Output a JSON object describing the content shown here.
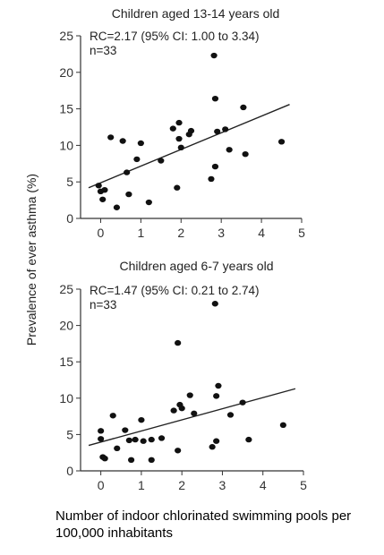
{
  "shared": {
    "ylabel": "Prevalence of ever asthma (%)",
    "xlabel": "Number of indoor chlorinated swimming pools per 100,000 inhabitants"
  },
  "chart_data": [
    {
      "type": "scatter",
      "title": "Children aged 13-14 years old",
      "annotation_lines": [
        "RC=2.17 (95% CI: 1.00 to 3.34)",
        "n=33"
      ],
      "xlabel": "Number of indoor chlorinated swimming pools per 100,000 inhabitants",
      "ylabel": "Prevalence of ever asthma (%)",
      "xlim": [
        -0.5,
        5
      ],
      "ylim": [
        0,
        25
      ],
      "xticks": [
        0,
        1,
        2,
        3,
        4,
        5
      ],
      "yticks": [
        0,
        5,
        10,
        15,
        20,
        25
      ],
      "grid": false,
      "points": [
        {
          "x": -0.05,
          "y": 4.5
        },
        {
          "x": 0.0,
          "y": 3.7
        },
        {
          "x": 0.05,
          "y": 2.6
        },
        {
          "x": 0.1,
          "y": 3.9
        },
        {
          "x": 0.25,
          "y": 11.1
        },
        {
          "x": 0.4,
          "y": 1.5
        },
        {
          "x": 0.55,
          "y": 10.6
        },
        {
          "x": 0.65,
          "y": 6.3
        },
        {
          "x": 0.7,
          "y": 3.3
        },
        {
          "x": 0.9,
          "y": 8.1
        },
        {
          "x": 1.0,
          "y": 10.3
        },
        {
          "x": 1.2,
          "y": 2.2
        },
        {
          "x": 1.5,
          "y": 7.9
        },
        {
          "x": 1.8,
          "y": 12.3
        },
        {
          "x": 1.9,
          "y": 4.2
        },
        {
          "x": 1.95,
          "y": 10.9
        },
        {
          "x": 1.95,
          "y": 13.1
        },
        {
          "x": 2.0,
          "y": 9.7
        },
        {
          "x": 2.25,
          "y": 12.0
        },
        {
          "x": 2.2,
          "y": 11.5
        },
        {
          "x": 2.75,
          "y": 5.4
        },
        {
          "x": 2.82,
          "y": 22.3
        },
        {
          "x": 2.85,
          "y": 7.1
        },
        {
          "x": 2.85,
          "y": 16.4
        },
        {
          "x": 2.9,
          "y": 11.9
        },
        {
          "x": 3.1,
          "y": 12.2
        },
        {
          "x": 3.2,
          "y": 9.4
        },
        {
          "x": 3.55,
          "y": 15.2
        },
        {
          "x": 3.6,
          "y": 8.8
        },
        {
          "x": 4.5,
          "y": 10.5
        }
      ],
      "fit_line": {
        "x": [
          -0.3,
          4.7
        ],
        "y": [
          4.2,
          15.6
        ]
      }
    },
    {
      "type": "scatter",
      "title": "Children aged 6-7 years old",
      "annotation_lines": [
        "RC=1.47 (95% CI: 0.21 to 2.74)",
        "n=33"
      ],
      "xlabel": "Number of indoor chlorinated swimming pools per 100,000 inhabitants",
      "ylabel": "Prevalence of ever asthma (%)",
      "xlim": [
        -0.5,
        5
      ],
      "ylim": [
        0,
        25
      ],
      "xticks": [
        0,
        1,
        2,
        3,
        4,
        5
      ],
      "yticks": [
        0,
        5,
        10,
        15,
        20,
        25
      ],
      "grid": false,
      "points": [
        {
          "x": 0.0,
          "y": 5.5
        },
        {
          "x": 0.0,
          "y": 4.4
        },
        {
          "x": 0.05,
          "y": 1.9
        },
        {
          "x": 0.1,
          "y": 1.7
        },
        {
          "x": 0.3,
          "y": 7.6
        },
        {
          "x": 0.4,
          "y": 3.1
        },
        {
          "x": 0.6,
          "y": 5.6
        },
        {
          "x": 0.7,
          "y": 4.2
        },
        {
          "x": 0.75,
          "y": 1.5
        },
        {
          "x": 0.85,
          "y": 4.3
        },
        {
          "x": 1.0,
          "y": 7.0
        },
        {
          "x": 1.05,
          "y": 4.1
        },
        {
          "x": 1.25,
          "y": 1.5
        },
        {
          "x": 1.25,
          "y": 4.3
        },
        {
          "x": 1.5,
          "y": 4.5
        },
        {
          "x": 1.8,
          "y": 8.3
        },
        {
          "x": 1.9,
          "y": 2.8
        },
        {
          "x": 1.9,
          "y": 17.6
        },
        {
          "x": 1.95,
          "y": 9.1
        },
        {
          "x": 2.0,
          "y": 8.6
        },
        {
          "x": 2.2,
          "y": 10.4
        },
        {
          "x": 2.3,
          "y": 7.9
        },
        {
          "x": 2.75,
          "y": 3.3
        },
        {
          "x": 2.82,
          "y": 23.0
        },
        {
          "x": 2.85,
          "y": 4.1
        },
        {
          "x": 2.9,
          "y": 11.7
        },
        {
          "x": 2.85,
          "y": 10.3
        },
        {
          "x": 3.2,
          "y": 7.7
        },
        {
          "x": 3.5,
          "y": 9.4
        },
        {
          "x": 3.65,
          "y": 4.3
        },
        {
          "x": 4.5,
          "y": 6.3
        }
      ],
      "fit_line": {
        "x": [
          -0.3,
          4.8
        ],
        "y": [
          3.5,
          11.3
        ]
      }
    }
  ]
}
